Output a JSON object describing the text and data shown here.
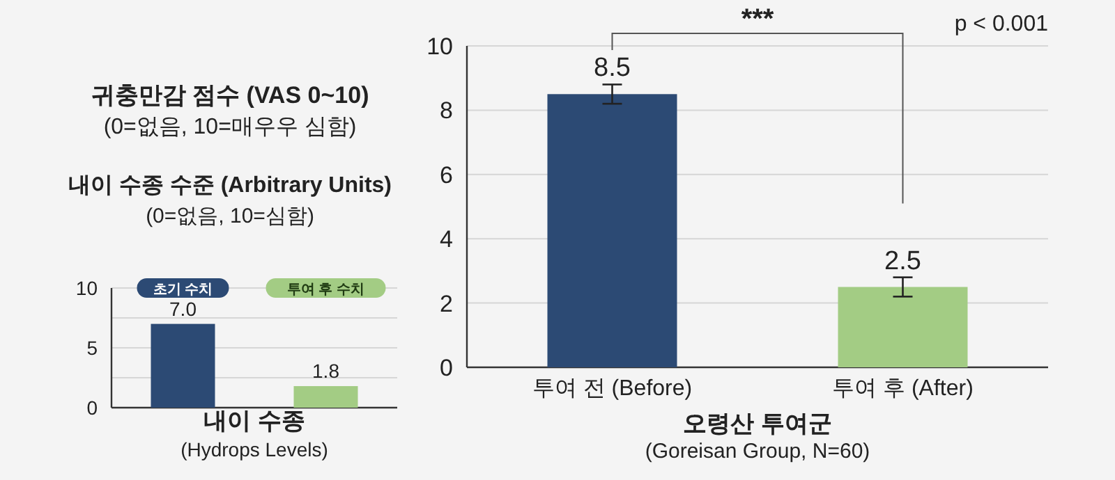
{
  "chart_data": [
    {
      "type": "bar",
      "title": "내이 수종 수준 (Arbitrary Units)",
      "subtitle": "(0=없음, 10=심함)",
      "xlabel": "내이 수종\n(Hydrops Levels)",
      "categories": [
        "초기 수치",
        "투여 후 수치"
      ],
      "values": [
        7.0,
        1.8
      ],
      "value_labels": [
        "7.0",
        "1.8"
      ],
      "colors": [
        "#2c4a74",
        "#a3cc84"
      ],
      "ylim": [
        0,
        10
      ],
      "yticks": [
        0,
        {
          "value": 2.5,
          "label": null
        },
        5,
        {
          "value": 7.5,
          "label": null
        },
        10
      ],
      "grid": "y"
    },
    {
      "type": "bar",
      "title": "귀충만감 점수 (VAS 0~10)",
      "subtitle": "(0=없음, 10=매우우 심함)",
      "xlabel": "오령산 투여군\n(Goreisan Group, N=60)",
      "categories": [
        "투여 전 (Before)",
        "투여 후 (After)"
      ],
      "values": [
        8.5,
        2.5
      ],
      "errors": [
        0.3,
        0.3
      ],
      "value_labels": [
        "8.5",
        "2.5"
      ],
      "colors": [
        "#2c4a74",
        "#a3cc84"
      ],
      "ylim": [
        0,
        10
      ],
      "yticks": [
        0,
        2,
        4,
        6,
        8,
        10
      ],
      "grid": "y",
      "annotations": [
        "***",
        "p < 0.001"
      ]
    }
  ]
}
